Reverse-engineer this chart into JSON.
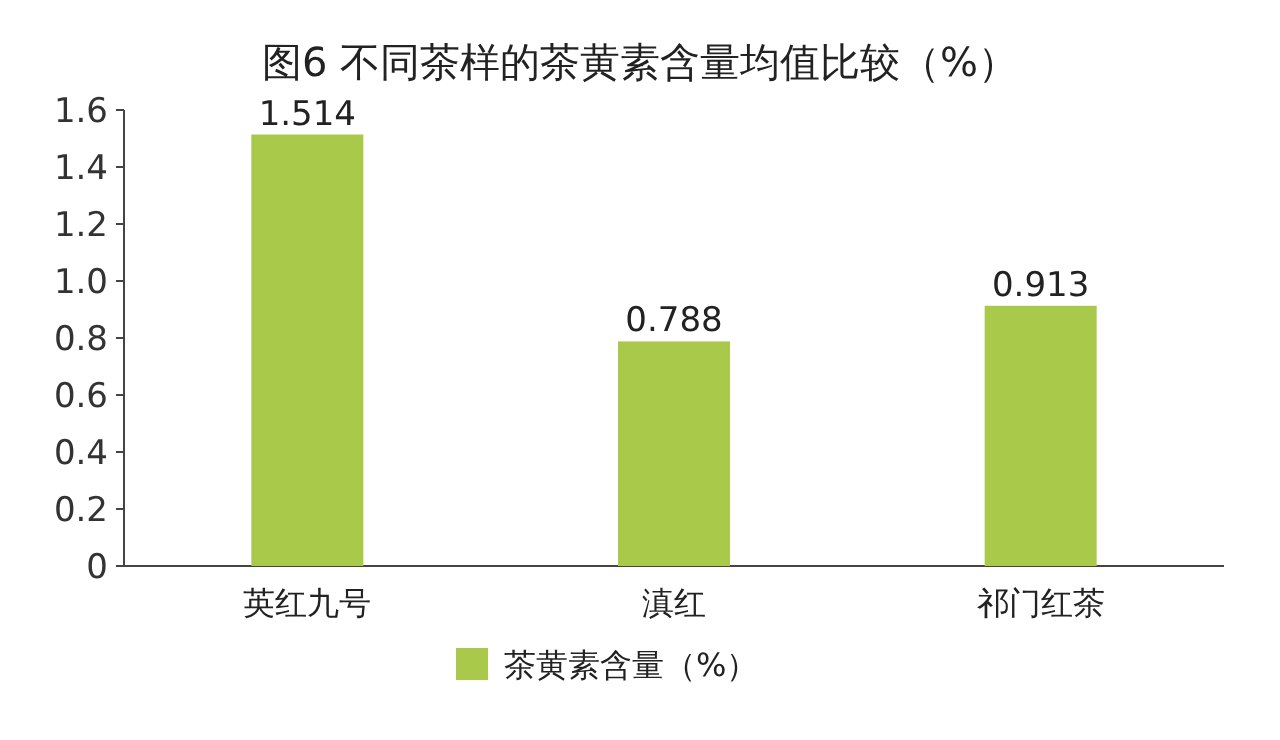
{
  "chart_data": {
    "type": "bar",
    "title": "图6 不同茶样的茶黄素含量均值比较（%）",
    "categories": [
      "英红九号",
      "滇红",
      "祁门红茶"
    ],
    "series": [
      {
        "name": "茶黄素含量（%）",
        "color": "#a9c94a",
        "values": [
          1.514,
          0.788,
          0.913
        ]
      }
    ],
    "ylim": [
      0,
      1.6
    ],
    "yticks": [
      0,
      0.2,
      0.4,
      0.6,
      0.8,
      {
        "value": 1,
        "label": "1.0"
      },
      1.2,
      1.4,
      1.6
    ],
    "data_labels": true,
    "legend": "bottom"
  }
}
